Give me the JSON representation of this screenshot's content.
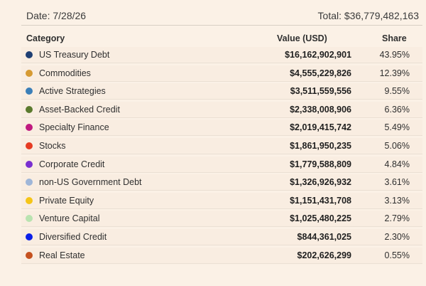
{
  "header": {
    "date": "Date: 7/28/26",
    "total": "Total: $36,779,482,163"
  },
  "table": {
    "columns": [
      "Category",
      "Value (USD)",
      "Share"
    ],
    "rows": [
      {
        "category": "US Treasury Debt",
        "value": "$16,162,902,901",
        "share": "43.95%",
        "color": "#1f3f73"
      },
      {
        "category": "Commodities",
        "value": "$4,555,229,826",
        "share": "12.39%",
        "color": "#d69a32"
      },
      {
        "category": "Active Strategies",
        "value": "$3,511,559,556",
        "share": "9.55%",
        "color": "#3b7fb8"
      },
      {
        "category": "Asset-Backed Credit",
        "value": "$2,338,008,906",
        "share": "6.36%",
        "color": "#5b7a2e"
      },
      {
        "category": "Specialty Finance",
        "value": "$2,019,415,742",
        "share": "5.49%",
        "color": "#c0197f"
      },
      {
        "category": "Stocks",
        "value": "$1,861,950,235",
        "share": "5.06%",
        "color": "#e63b22"
      },
      {
        "category": "Corporate Credit",
        "value": "$1,779,588,809",
        "share": "4.84%",
        "color": "#7a2fd0"
      },
      {
        "category": "non-US Government Debt",
        "value": "$1,326,926,932",
        "share": "3.61%",
        "color": "#9fb6d8"
      },
      {
        "category": "Private Equity",
        "value": "$1,151,431,708",
        "share": "3.13%",
        "color": "#f5c518"
      },
      {
        "category": "Venture Capital",
        "value": "$1,025,480,225",
        "share": "2.79%",
        "color": "#b9e3b0"
      },
      {
        "category": "Diversified Credit",
        "value": "$844,361,025",
        "share": "2.30%",
        "color": "#0b1fe8"
      },
      {
        "category": "Real Estate",
        "value": "$202,626,299",
        "share": "0.55%",
        "color": "#c5511f"
      }
    ]
  }
}
